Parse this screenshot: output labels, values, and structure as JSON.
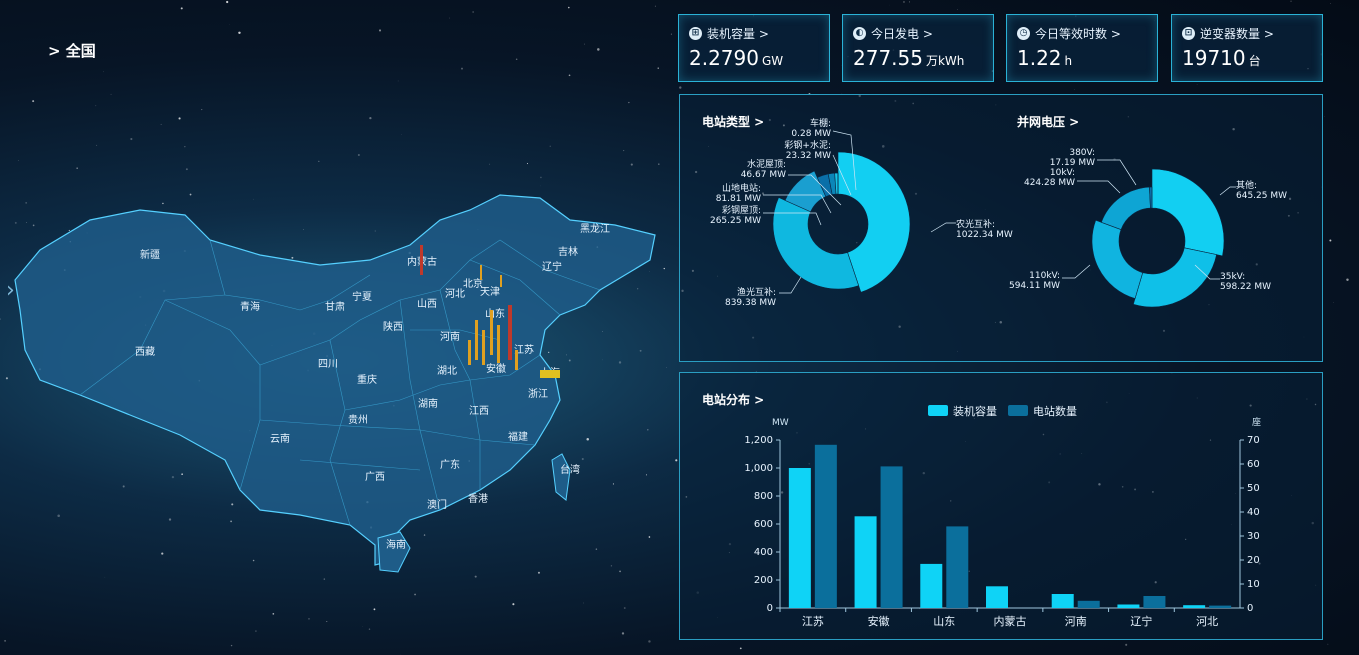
{
  "breadcrumb": "> 全国",
  "kpis": [
    {
      "icon": "capacity-icon",
      "label": "装机容量 >",
      "value": "2.2790",
      "unit": "GW"
    },
    {
      "icon": "power-icon",
      "label": "今日发电 >",
      "value": "277.55",
      "unit": "万kWh"
    },
    {
      "icon": "hours-icon",
      "label": "今日等效时数 >",
      "value": "1.22",
      "unit": "h"
    },
    {
      "icon": "inverter-icon",
      "label": "逆变器数量 >",
      "value": "19710",
      "unit": "台"
    }
  ],
  "station_type": {
    "title": "电站类型 >",
    "segments": [
      {
        "name": "农光互补",
        "value_label": "1022.34 MW",
        "value": 1022.34
      },
      {
        "name": "渔光互补",
        "value_label": "839.38 MW",
        "value": 839.38
      },
      {
        "name": "彩钢屋顶",
        "value_label": "265.25 MW",
        "value": 265.25
      },
      {
        "name": "山地电站",
        "value_label": "81.81 MW",
        "value": 81.81
      },
      {
        "name": "水泥屋顶",
        "value_label": "46.67 MW",
        "value": 46.67
      },
      {
        "name": "彩钢+水泥",
        "value_label": "23.32 MW",
        "value": 23.32
      },
      {
        "name": "车棚",
        "value_label": "0.28 MW",
        "value": 0.28
      }
    ]
  },
  "grid_voltage": {
    "title": "并网电压 >",
    "segments": [
      {
        "name": "其他",
        "value_label": "645.25 MW",
        "value": 645.25
      },
      {
        "name": "35kV",
        "value_label": "598.22 MW",
        "value": 598.22
      },
      {
        "name": "110kV",
        "value_label": "594.11 MW",
        "value": 594.11
      },
      {
        "name": "10kV",
        "value_label": "424.28 MW",
        "value": 424.28
      },
      {
        "name": "380V",
        "value_label": "17.19 MW",
        "value": 17.19
      }
    ]
  },
  "distribution": {
    "title": "电站分布 >",
    "legend": [
      "装机容量",
      "电站数量"
    ],
    "y_left_unit": "MW",
    "y_right_unit": "座",
    "colors": {
      "capacity": "#0fd3f6",
      "count": "#0b6f9c",
      "accent": "#2ab2d6"
    },
    "chart_data": {
      "type": "bar",
      "categories": [
        "江苏",
        "安徽",
        "山东",
        "内蒙古",
        "河南",
        "辽宁",
        "河北"
      ],
      "series": [
        {
          "name": "装机容量",
          "axis": "left",
          "values": [
            1000,
            655,
            315,
            155,
            100,
            25,
            20
          ]
        },
        {
          "name": "电站数量",
          "axis": "right",
          "values": [
            68,
            59,
            34,
            0,
            3,
            5,
            1
          ]
        }
      ],
      "ylim_left": [
        0,
        1200
      ],
      "ylim_right": [
        0,
        70
      ],
      "yticks_left": [
        "0",
        "200",
        "400",
        "600",
        "800",
        "1,000",
        "1,200"
      ],
      "yticks_right": [
        "0",
        "10",
        "20",
        "30",
        "40",
        "50",
        "60",
        "70"
      ]
    }
  },
  "map": {
    "provinces": [
      "新疆",
      "西藏",
      "青海",
      "甘肃",
      "宁夏",
      "内蒙古",
      "陕西",
      "四川",
      "重庆",
      "云南",
      "贵州",
      "广西",
      "广东",
      "海南",
      "湖南",
      "湖北",
      "河南",
      "山西",
      "河北",
      "北京",
      "天津",
      "山东",
      "江苏",
      "安徽",
      "上海",
      "浙江",
      "江西",
      "福建",
      "台湾",
      "香港",
      "澳门",
      "辽宁",
      "吉林",
      "黑龙江"
    ]
  }
}
